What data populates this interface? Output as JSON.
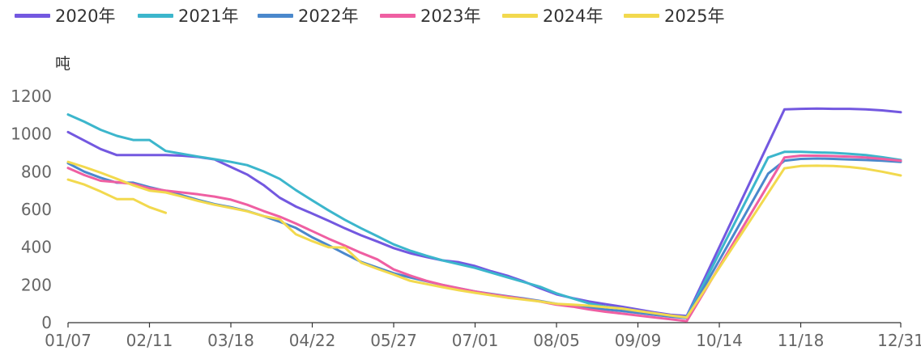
{
  "chart_data": {
    "type": "line",
    "ylabel": "吨",
    "ylim": [
      0,
      1200
    ],
    "y_ticks": [
      0,
      200,
      400,
      600,
      800,
      1000,
      1200
    ],
    "x_ticks": [
      "01/07",
      "02/11",
      "03/18",
      "04/22",
      "05/27",
      "07/01",
      "08/05",
      "09/09",
      "10/14",
      "11/18",
      "12/31"
    ],
    "grid": false,
    "legend_position": "top-left",
    "series": [
      {
        "name": "2020年",
        "color": "#7358e0",
        "points": [
          [
            "01/07",
            1010
          ],
          [
            "01/14",
            965
          ],
          [
            "01/21",
            920
          ],
          [
            "01/28",
            888
          ],
          [
            "02/04",
            888
          ],
          [
            "02/11",
            888
          ],
          [
            "02/18",
            888
          ],
          [
            "02/25",
            885
          ],
          [
            "03/04",
            878
          ],
          [
            "03/11",
            865
          ],
          [
            "03/18",
            825
          ],
          [
            "03/25",
            785
          ],
          [
            "04/01",
            730
          ],
          [
            "04/08",
            662
          ],
          [
            "04/15",
            615
          ],
          [
            "04/22",
            578
          ],
          [
            "04/29",
            540
          ],
          [
            "05/06",
            500
          ],
          [
            "05/13",
            463
          ],
          [
            "05/20",
            430
          ],
          [
            "05/27",
            395
          ],
          [
            "06/03",
            368
          ],
          [
            "06/10",
            348
          ],
          [
            "06/17",
            330
          ],
          [
            "06/24",
            320
          ],
          [
            "07/01",
            300
          ],
          [
            "07/08",
            272
          ],
          [
            "07/15",
            248
          ],
          [
            "07/22",
            218
          ],
          [
            "07/29",
            182
          ],
          [
            "08/05",
            150
          ],
          [
            "08/12",
            130
          ],
          [
            "08/19",
            112
          ],
          [
            "08/26",
            98
          ],
          [
            "09/02",
            85
          ],
          [
            "09/09",
            70
          ],
          [
            "09/16",
            55
          ],
          [
            "09/23",
            42
          ],
          [
            "09/30",
            35
          ],
          [
            "11/11",
            1130
          ],
          [
            "11/18",
            1133
          ],
          [
            "11/25",
            1135
          ],
          [
            "12/02",
            1133
          ],
          [
            "12/09",
            1133
          ],
          [
            "12/16",
            1130
          ],
          [
            "12/23",
            1125
          ],
          [
            "12/31",
            1115
          ]
        ]
      },
      {
        "name": "2021年",
        "color": "#3cb6cc",
        "points": [
          [
            "01/07",
            1103
          ],
          [
            "01/14",
            1065
          ],
          [
            "01/21",
            1022
          ],
          [
            "01/28",
            990
          ],
          [
            "02/04",
            968
          ],
          [
            "02/11",
            968
          ],
          [
            "02/18",
            910
          ],
          [
            "02/25",
            895
          ],
          [
            "03/04",
            880
          ],
          [
            "03/11",
            866
          ],
          [
            "03/18",
            852
          ],
          [
            "03/25",
            835
          ],
          [
            "04/01",
            802
          ],
          [
            "04/08",
            762
          ],
          [
            "04/15",
            702
          ],
          [
            "04/22",
            648
          ],
          [
            "04/29",
            595
          ],
          [
            "05/06",
            545
          ],
          [
            "05/13",
            500
          ],
          [
            "05/20",
            458
          ],
          [
            "05/27",
            415
          ],
          [
            "06/03",
            382
          ],
          [
            "06/10",
            355
          ],
          [
            "06/17",
            330
          ],
          [
            "06/24",
            310
          ],
          [
            "07/01",
            290
          ],
          [
            "07/08",
            265
          ],
          [
            "07/15",
            240
          ],
          [
            "07/22",
            215
          ],
          [
            "07/29",
            190
          ],
          [
            "08/05",
            155
          ],
          [
            "08/12",
            128
          ],
          [
            "08/19",
            102
          ],
          [
            "08/26",
            85
          ],
          [
            "09/02",
            75
          ],
          [
            "09/09",
            62
          ],
          [
            "09/16",
            48
          ],
          [
            "09/23",
            35
          ],
          [
            "09/30",
            30
          ],
          [
            "11/04",
            875
          ],
          [
            "11/11",
            905
          ],
          [
            "11/18",
            905
          ],
          [
            "11/25",
            902
          ],
          [
            "12/02",
            900
          ],
          [
            "12/09",
            895
          ],
          [
            "12/16",
            888
          ],
          [
            "12/23",
            877
          ],
          [
            "12/31",
            862
          ]
        ]
      },
      {
        "name": "2022年",
        "color": "#4a88cc",
        "points": [
          [
            "01/07",
            845
          ],
          [
            "01/14",
            800
          ],
          [
            "01/21",
            768
          ],
          [
            "01/28",
            742
          ],
          [
            "02/04",
            742
          ],
          [
            "02/11",
            718
          ],
          [
            "02/18",
            698
          ],
          [
            "02/25",
            675
          ],
          [
            "03/04",
            650
          ],
          [
            "03/11",
            628
          ],
          [
            "03/18",
            612
          ],
          [
            "03/25",
            592
          ],
          [
            "04/01",
            565
          ],
          [
            "04/08",
            535
          ],
          [
            "04/15",
            502
          ],
          [
            "04/22",
            452
          ],
          [
            "04/29",
            410
          ],
          [
            "05/06",
            365
          ],
          [
            "05/13",
            322
          ],
          [
            "05/20",
            292
          ],
          [
            "05/27",
            262
          ],
          [
            "06/03",
            240
          ],
          [
            "06/10",
            220
          ],
          [
            "06/17",
            200
          ],
          [
            "06/24",
            182
          ],
          [
            "07/01",
            165
          ],
          [
            "07/08",
            152
          ],
          [
            "07/15",
            140
          ],
          [
            "07/22",
            128
          ],
          [
            "07/29",
            115
          ],
          [
            "08/05",
            100
          ],
          [
            "08/12",
            90
          ],
          [
            "08/19",
            80
          ],
          [
            "08/26",
            70
          ],
          [
            "09/02",
            62
          ],
          [
            "09/09",
            52
          ],
          [
            "09/16",
            42
          ],
          [
            "09/23",
            32
          ],
          [
            "09/30",
            25
          ],
          [
            "11/04",
            790
          ],
          [
            "11/11",
            858
          ],
          [
            "11/18",
            868
          ],
          [
            "11/25",
            870
          ],
          [
            "12/02",
            868
          ],
          [
            "12/09",
            865
          ],
          [
            "12/16",
            862
          ],
          [
            "12/23",
            858
          ],
          [
            "12/31",
            852
          ]
        ]
      },
      {
        "name": "2023年",
        "color": "#ef5fa2",
        "points": [
          [
            "01/07",
            820
          ],
          [
            "01/14",
            782
          ],
          [
            "01/21",
            752
          ],
          [
            "01/28",
            745
          ],
          [
            "02/04",
            735
          ],
          [
            "02/11",
            712
          ],
          [
            "02/18",
            700
          ],
          [
            "02/25",
            690
          ],
          [
            "03/04",
            680
          ],
          [
            "03/11",
            668
          ],
          [
            "03/18",
            652
          ],
          [
            "03/25",
            625
          ],
          [
            "04/01",
            592
          ],
          [
            "04/08",
            562
          ],
          [
            "04/15",
            525
          ],
          [
            "04/22",
            485
          ],
          [
            "04/29",
            445
          ],
          [
            "05/06",
            408
          ],
          [
            "05/13",
            370
          ],
          [
            "05/20",
            335
          ],
          [
            "05/27",
            282
          ],
          [
            "06/03",
            250
          ],
          [
            "06/10",
            222
          ],
          [
            "06/17",
            200
          ],
          [
            "06/24",
            182
          ],
          [
            "07/01",
            165
          ],
          [
            "07/08",
            150
          ],
          [
            "07/15",
            138
          ],
          [
            "07/22",
            125
          ],
          [
            "07/29",
            112
          ],
          [
            "08/05",
            95
          ],
          [
            "08/12",
            85
          ],
          [
            "08/19",
            70
          ],
          [
            "08/26",
            58
          ],
          [
            "09/02",
            48
          ],
          [
            "09/09",
            38
          ],
          [
            "09/16",
            28
          ],
          [
            "09/23",
            18
          ],
          [
            "09/30",
            8
          ],
          [
            "11/11",
            875
          ],
          [
            "11/18",
            885
          ],
          [
            "11/25",
            885
          ],
          [
            "12/02",
            883
          ],
          [
            "12/09",
            880
          ],
          [
            "12/16",
            875
          ],
          [
            "12/23",
            868
          ],
          [
            "12/31",
            858
          ]
        ]
      },
      {
        "name": "2024年",
        "color": "#f2d94e",
        "points": [
          [
            "01/07",
            852
          ],
          [
            "01/14",
            825
          ],
          [
            "01/21",
            795
          ],
          [
            "01/28",
            762
          ],
          [
            "02/04",
            728
          ],
          [
            "02/11",
            700
          ],
          [
            "02/18",
            690
          ],
          [
            "02/25",
            668
          ],
          [
            "03/04",
            645
          ],
          [
            "03/11",
            625
          ],
          [
            "03/18",
            608
          ],
          [
            "03/25",
            590
          ],
          [
            "04/01",
            565
          ],
          [
            "04/08",
            548
          ],
          [
            "04/15",
            468
          ],
          [
            "04/22",
            432
          ],
          [
            "04/29",
            400
          ],
          [
            "05/06",
            398
          ],
          [
            "05/13",
            318
          ],
          [
            "05/20",
            285
          ],
          [
            "05/27",
            255
          ],
          [
            "06/03",
            222
          ],
          [
            "06/10",
            205
          ],
          [
            "06/17",
            188
          ],
          [
            "06/24",
            172
          ],
          [
            "07/01",
            158
          ],
          [
            "07/08",
            145
          ],
          [
            "07/15",
            132
          ],
          [
            "07/22",
            122
          ],
          [
            "07/29",
            112
          ],
          [
            "08/05",
            100
          ],
          [
            "08/12",
            95
          ],
          [
            "08/19",
            90
          ],
          [
            "08/26",
            82
          ],
          [
            "09/02",
            75
          ],
          [
            "09/09",
            62
          ],
          [
            "09/16",
            50
          ],
          [
            "09/23",
            38
          ],
          [
            "09/30",
            28
          ],
          [
            "11/11",
            818
          ],
          [
            "11/18",
            830
          ],
          [
            "11/25",
            832
          ],
          [
            "12/02",
            830
          ],
          [
            "12/09",
            825
          ],
          [
            "12/16",
            815
          ],
          [
            "12/23",
            800
          ],
          [
            "12/31",
            780
          ]
        ]
      },
      {
        "name": "2025年",
        "color": "#f2d94e",
        "points": [
          [
            "01/07",
            758
          ],
          [
            "01/14",
            732
          ],
          [
            "01/21",
            695
          ],
          [
            "01/28",
            655
          ],
          [
            "02/04",
            655
          ],
          [
            "02/11",
            612
          ],
          [
            "02/18",
            582
          ]
        ]
      }
    ]
  }
}
